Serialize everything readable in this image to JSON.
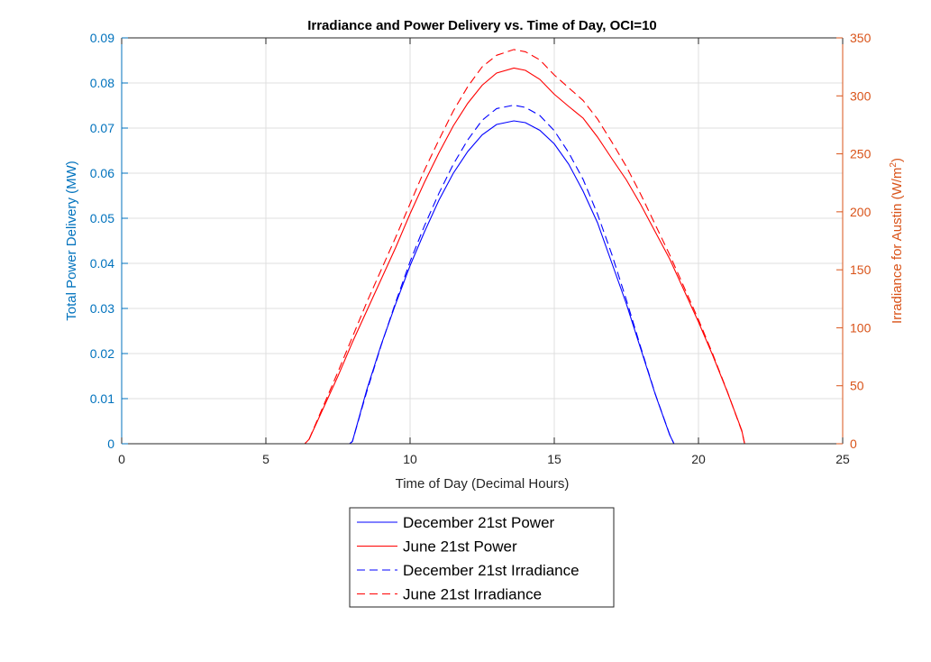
{
  "chart_data": {
    "type": "line",
    "title": "Irradiance and Power Delivery vs. Time of Day, OCI=10",
    "xlabel": "Time of Day (Decimal Hours)",
    "ylabel_left": "Total Power Delivery (MW)",
    "ylabel_right_prefix": "Irradiance for Austin (W/m",
    "ylabel_right_sup": "2",
    "ylabel_right_suffix": ")",
    "xlim": [
      0,
      25
    ],
    "ylim_left": [
      0,
      0.09
    ],
    "ylim_right": [
      0,
      350
    ],
    "x_ticks": [
      "0",
      "5",
      "10",
      "15",
      "20",
      "25"
    ],
    "y_ticks_left": [
      "0",
      "0.01",
      "0.02",
      "0.03",
      "0.04",
      "0.05",
      "0.06",
      "0.07",
      "0.08",
      "0.09"
    ],
    "y_ticks_right": [
      "0",
      "50",
      "100",
      "150",
      "200",
      "250",
      "300",
      "350"
    ],
    "grid": true,
    "legend_position": "below",
    "colors": {
      "left_axis": "#0072BD",
      "right_axis": "#D95319",
      "blue": "#0000FF",
      "red": "#FF0000",
      "grid": "#DFDFDF",
      "axis_dark": "#262626"
    },
    "series": [
      {
        "name": "December 21st Power",
        "axis": "left",
        "color": "blue",
        "style": "solid",
        "x": [
          0,
          7.9,
          8.0,
          8.5,
          9,
          9.5,
          10,
          10.5,
          11,
          11.5,
          12,
          12.5,
          13,
          13.6,
          14,
          14.5,
          15,
          15.5,
          16,
          16.5,
          17,
          17.5,
          18,
          18.5,
          19.0,
          19.15,
          25
        ],
        "y": [
          0,
          0,
          0.0005,
          0.012,
          0.022,
          0.031,
          0.0395,
          0.047,
          0.054,
          0.06,
          0.0648,
          0.0685,
          0.0708,
          0.0716,
          0.0712,
          0.0695,
          0.0665,
          0.062,
          0.056,
          0.049,
          0.04,
          0.031,
          0.021,
          0.011,
          0.002,
          0,
          0
        ]
      },
      {
        "name": "June 21st Power",
        "axis": "left",
        "color": "red",
        "style": "solid",
        "x": [
          0,
          6.35,
          6.5,
          7,
          7.5,
          8,
          8.5,
          9,
          9.5,
          10,
          10.5,
          11,
          11.5,
          12,
          12.5,
          13,
          13.6,
          14,
          14.5,
          15,
          15.5,
          16,
          16.5,
          17,
          17.5,
          18,
          18.5,
          19,
          19.5,
          20,
          20.5,
          21,
          21.5,
          21.6,
          25
        ],
        "y": [
          0,
          0,
          0.001,
          0.008,
          0.015,
          0.0225,
          0.0295,
          0.0365,
          0.0435,
          0.051,
          0.058,
          0.0645,
          0.0705,
          0.0755,
          0.0795,
          0.0822,
          0.0833,
          0.0828,
          0.0808,
          0.0775,
          0.0748,
          0.0722,
          0.068,
          0.0632,
          0.0585,
          0.053,
          0.047,
          0.041,
          0.034,
          0.027,
          0.0195,
          0.0115,
          0.003,
          0,
          0
        ]
      },
      {
        "name": "December 21st Irradiance",
        "axis": "right",
        "color": "blue",
        "style": "dashed",
        "x": [
          0,
          7.9,
          8.0,
          8.5,
          9,
          9.5,
          10,
          10.5,
          11,
          11.5,
          12,
          12.5,
          13,
          13.6,
          14,
          14.5,
          15,
          15.5,
          16,
          16.5,
          17,
          17.5,
          18,
          18.5,
          19.0,
          19.15,
          25
        ],
        "y": [
          0,
          0,
          2,
          45,
          85,
          122,
          157,
          188,
          216,
          241,
          262,
          279,
          289,
          292,
          290,
          283,
          270,
          251,
          228,
          198,
          163,
          124,
          83,
          43,
          8,
          0,
          0
        ]
      },
      {
        "name": "June 21st Irradiance",
        "axis": "right",
        "color": "red",
        "style": "dashed",
        "x": [
          0,
          6.35,
          6.5,
          7,
          7.5,
          8,
          8.5,
          9,
          9.5,
          10,
          10.5,
          11,
          11.5,
          12,
          12.5,
          13,
          13.6,
          14,
          14.5,
          15,
          15.5,
          16,
          16.5,
          17,
          17.5,
          18,
          18.5,
          19,
          19.5,
          20,
          20.5,
          21,
          21.5,
          21.6,
          25
        ],
        "y": [
          0,
          0,
          4,
          33,
          62,
          92,
          122,
          150,
          178,
          207,
          236,
          262,
          287,
          308,
          325,
          335,
          340,
          338,
          331,
          318,
          307,
          296,
          280,
          260,
          239,
          215,
          189,
          163,
          135,
          107,
          77,
          45,
          11,
          0,
          0
        ]
      }
    ]
  }
}
